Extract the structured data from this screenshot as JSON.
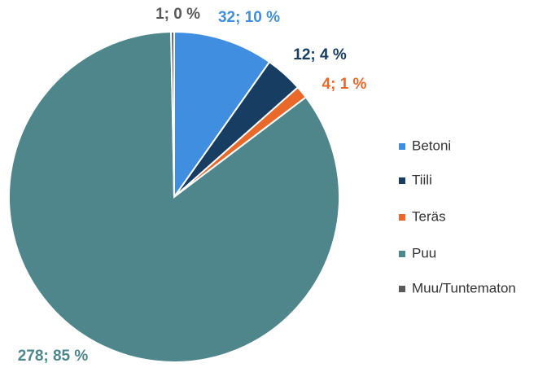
{
  "chart_data": {
    "type": "pie",
    "categories": [
      "Betoni",
      "Tiili",
      "Teräs",
      "Puu",
      "Muu/Tuntematon"
    ],
    "values": [
      32,
      12,
      4,
      278,
      1
    ],
    "value_labels": [
      "32; 10 %",
      "12; 4 %",
      "4; 1 %",
      "278; 85 %",
      "1; 0 %"
    ],
    "colors": [
      "#3f8ee0",
      "#173d63",
      "#e8692a",
      "#4e868c",
      "#595959"
    ],
    "legend": "right"
  }
}
